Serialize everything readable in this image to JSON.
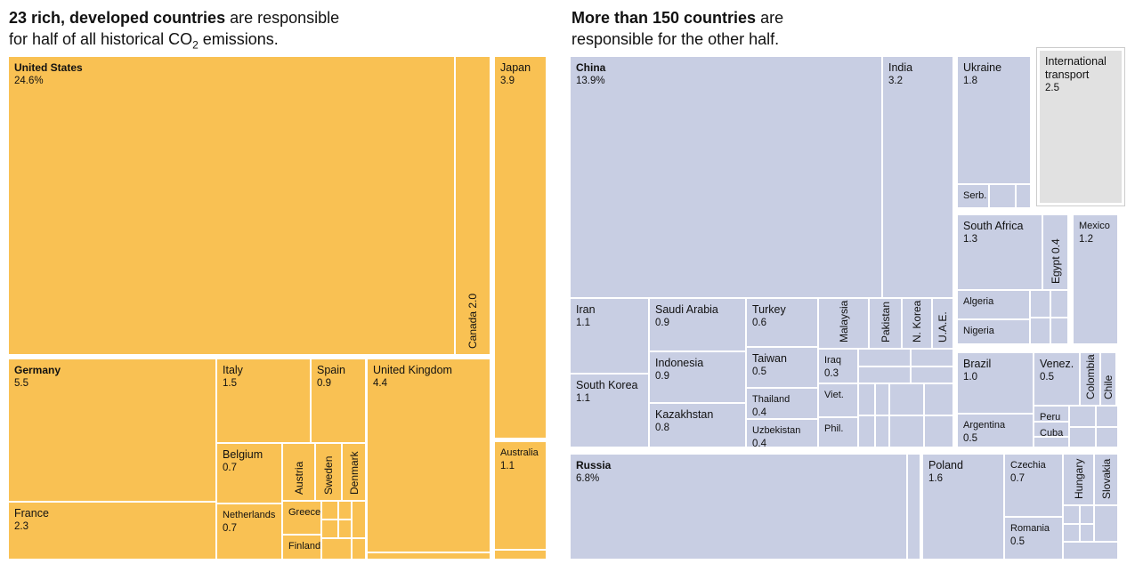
{
  "headline_left": {
    "bold": "23 rich, developed countries",
    "rest": " are responsible",
    "line2a": "for half of all historical CO",
    "sub": "2",
    "line2b": " emissions."
  },
  "headline_right": {
    "bold": "More than 150 countries",
    "rest": " are",
    "line2": "responsible for the other half."
  },
  "colors": {
    "developed": "#f9c153",
    "other": "#c8cee3",
    "transport": "#e1e1e1"
  },
  "chart_data": {
    "type": "treemap",
    "unit": "% of historical CO2 emissions",
    "developed": [
      {
        "name": "United States",
        "value": "24.6%"
      },
      {
        "name": "Canada",
        "value": "2.0"
      },
      {
        "name": "Japan",
        "value": "3.9"
      },
      {
        "name": "Australia",
        "value": "1.1"
      },
      {
        "name": "Germany",
        "value": "5.5"
      },
      {
        "name": "France",
        "value": "2.3"
      },
      {
        "name": "Italy",
        "value": "1.5"
      },
      {
        "name": "Spain",
        "value": "0.9"
      },
      {
        "name": "Belgium",
        "value": "0.7"
      },
      {
        "name": "Netherlands",
        "value": "0.7"
      },
      {
        "name": "Austria"
      },
      {
        "name": "Sweden"
      },
      {
        "name": "Denmark"
      },
      {
        "name": "Greece"
      },
      {
        "name": "Finland"
      },
      {
        "name": "United Kingdom",
        "value": "4.4"
      }
    ],
    "other": [
      {
        "name": "China",
        "value": "13.9%"
      },
      {
        "name": "India",
        "value": "3.2"
      },
      {
        "name": "Ukraine",
        "value": "1.8"
      },
      {
        "name": "Serb."
      },
      {
        "name": "International transport",
        "value": "2.5"
      },
      {
        "name": "South Africa",
        "value": "1.3"
      },
      {
        "name": "Egypt",
        "value": "0.4"
      },
      {
        "name": "Mexico",
        "value": "1.2"
      },
      {
        "name": "Algeria"
      },
      {
        "name": "Nigeria"
      },
      {
        "name": "Iran",
        "value": "1.1"
      },
      {
        "name": "South Korea",
        "value": "1.1"
      },
      {
        "name": "Saudi Arabia",
        "value": "0.9"
      },
      {
        "name": "Indonesia",
        "value": "0.9"
      },
      {
        "name": "Kazakhstan",
        "value": "0.8"
      },
      {
        "name": "Turkey",
        "value": "0.6"
      },
      {
        "name": "Taiwan",
        "value": "0.5"
      },
      {
        "name": "Thailand",
        "value": "0.4"
      },
      {
        "name": "Uzbekistan",
        "value": "0.4"
      },
      {
        "name": "Malaysia"
      },
      {
        "name": "Pakistan"
      },
      {
        "name": "N. Korea"
      },
      {
        "name": "U.A.E."
      },
      {
        "name": "Iraq",
        "value": "0.3"
      },
      {
        "name": "Viet."
      },
      {
        "name": "Phil."
      },
      {
        "name": "Brazil",
        "value": "1.0"
      },
      {
        "name": "Argentina",
        "value": "0.5"
      },
      {
        "name": "Venez.",
        "value": "0.5"
      },
      {
        "name": "Colombia"
      },
      {
        "name": "Chile"
      },
      {
        "name": "Peru"
      },
      {
        "name": "Cuba"
      },
      {
        "name": "Russia",
        "value": "6.8%"
      },
      {
        "name": "Poland",
        "value": "1.6"
      },
      {
        "name": "Czechia",
        "value": "0.7"
      },
      {
        "name": "Romania",
        "value": "0.5"
      },
      {
        "name": "Hungary"
      },
      {
        "name": "Slovakia"
      }
    ]
  }
}
